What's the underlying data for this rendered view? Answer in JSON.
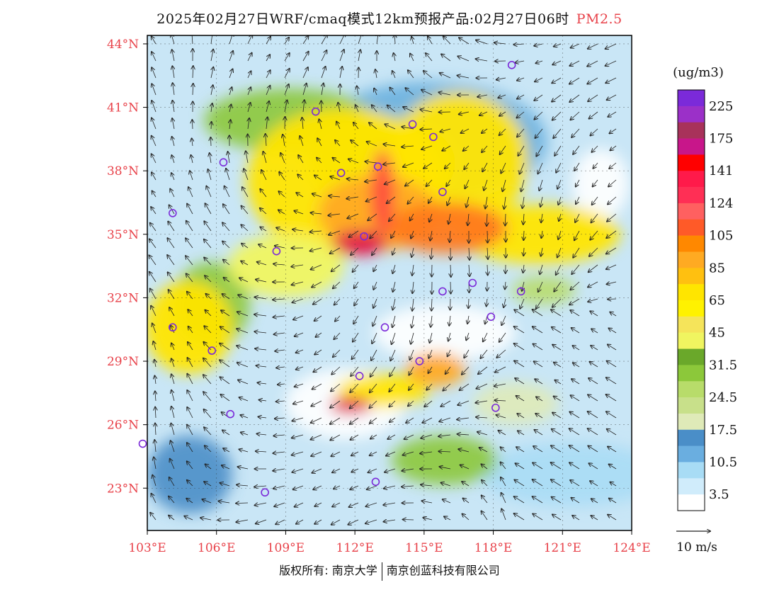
{
  "header": {
    "title": "2025年02月27日WRF/cmaq模式12km预报产品:02月27日06时",
    "pollutant": "PM2.5"
  },
  "axes": {
    "lat_labels": [
      "44°N",
      "41°N",
      "38°N",
      "35°N",
      "32°N",
      "29°N",
      "26°N",
      "23°N"
    ],
    "lat_values": [
      44,
      41,
      38,
      35,
      32,
      29,
      26,
      23
    ],
    "lon_labels": [
      "103°E",
      "106°E",
      "109°E",
      "112°E",
      "115°E",
      "118°E",
      "121°E",
      "124°E"
    ],
    "lon_values": [
      103,
      106,
      109,
      112,
      115,
      118,
      121,
      124
    ],
    "lon_range": [
      103,
      124
    ],
    "lat_range": [
      21,
      44.4
    ],
    "label_color": "#e8424a"
  },
  "legend": {
    "unit": "(ug/m3)",
    "levels": [
      "225",
      "175",
      "141",
      "124",
      "105",
      "85",
      "65",
      "45",
      "31.5",
      "24.5",
      "17.5",
      "10.5",
      "3.5"
    ],
    "colors": [
      "#7b2ad9",
      "#9b30c8",
      "#a8325a",
      "#c8168a",
      "#ff0000",
      "#ff1a4a",
      "#ff2f55",
      "#ff6060",
      "#ff5a28",
      "#ff8800",
      "#ffaa22",
      "#ffc010",
      "#ffe500",
      "#fff200",
      "#f5e45a",
      "#f0f560",
      "#6aa82a",
      "#8cc83a",
      "#b8dc6a",
      "#c8e08a",
      "#dfeab8",
      "#4a8ec8",
      "#6aaee0",
      "#a8dcf5",
      "#d0ecfb",
      "#ffffff"
    ]
  },
  "wind_scale": {
    "label": "10 m/s"
  },
  "footer": {
    "left": "版权所有: 南京大学",
    "right": "南京创蓝科技有限公司"
  },
  "cities": [
    [
      118.8,
      43.0
    ],
    [
      110.3,
      40.8
    ],
    [
      114.5,
      40.2
    ],
    [
      115.4,
      39.6
    ],
    [
      106.3,
      38.4
    ],
    [
      111.4,
      37.9
    ],
    [
      113.0,
      38.2
    ],
    [
      115.8,
      37.0
    ],
    [
      104.1,
      36.0
    ],
    [
      112.4,
      34.9
    ],
    [
      108.6,
      34.2
    ],
    [
      115.8,
      32.3
    ],
    [
      117.1,
      32.7
    ],
    [
      119.2,
      32.3
    ],
    [
      117.9,
      31.1
    ],
    [
      104.1,
      30.6
    ],
    [
      113.3,
      30.6
    ],
    [
      105.8,
      29.5
    ],
    [
      112.2,
      28.3
    ],
    [
      114.8,
      29.0
    ],
    [
      118.1,
      26.8
    ],
    [
      106.6,
      26.5
    ],
    [
      102.8,
      25.1
    ],
    [
      108.1,
      22.8
    ],
    [
      112.9,
      23.3
    ]
  ],
  "pollution_blobs": [
    {
      "lon": 111.5,
      "lat": 37.5,
      "rx": 4.2,
      "ry": 3.5,
      "level": "65"
    },
    {
      "lon": 116.5,
      "lat": 38.5,
      "rx": 3.0,
      "ry": 3.2,
      "level": "65"
    },
    {
      "lon": 120.0,
      "lat": 35.0,
      "rx": 3.5,
      "ry": 1.4,
      "level": "65"
    },
    {
      "lon": 113.0,
      "lat": 36.0,
      "rx": 2.6,
      "ry": 1.8,
      "level": "85"
    },
    {
      "lon": 116.0,
      "lat": 35.3,
      "rx": 2.6,
      "ry": 1.2,
      "level": "105"
    },
    {
      "lon": 112.2,
      "lat": 34.6,
      "rx": 1.2,
      "ry": 0.6,
      "level": "141"
    },
    {
      "lon": 113.2,
      "lat": 37.0,
      "rx": 0.5,
      "ry": 2.0,
      "level": "124"
    },
    {
      "lon": 104.8,
      "lat": 30.6,
      "rx": 1.9,
      "ry": 2.2,
      "level": "65"
    },
    {
      "lon": 113.2,
      "lat": 27.6,
      "rx": 2.0,
      "ry": 0.8,
      "level": "65"
    },
    {
      "lon": 111.8,
      "lat": 26.9,
      "rx": 0.9,
      "ry": 0.4,
      "level": "141"
    },
    {
      "lon": 115.5,
      "lat": 28.6,
      "rx": 1.3,
      "ry": 0.8,
      "level": "85"
    },
    {
      "lon": 109.0,
      "lat": 33.5,
      "rx": 2.5,
      "ry": 1.5,
      "level": "45"
    }
  ]
}
